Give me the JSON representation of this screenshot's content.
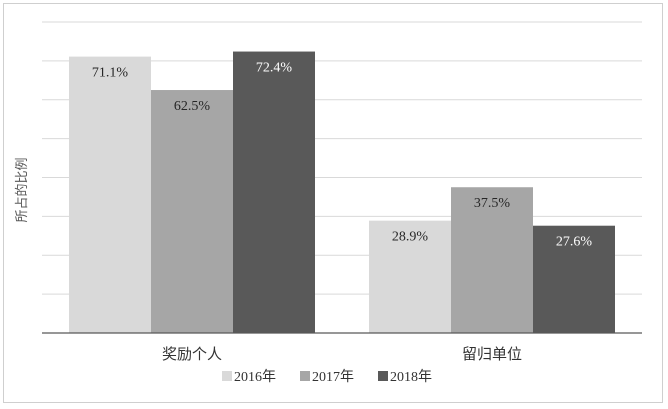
{
  "chart_data": {
    "type": "bar",
    "ylabel": "所占的比例",
    "categories": [
      "奖励个人",
      "留归单位"
    ],
    "ylim": [
      0,
      80
    ],
    "grid": true,
    "legend_position": "bottom",
    "value_format": "percent",
    "series": [
      {
        "name": "2016年",
        "values": [
          71.1,
          28.9
        ],
        "color": "#d9d9d9",
        "label_color": "#262626"
      },
      {
        "name": "2017年",
        "values": [
          62.5,
          37.5
        ],
        "color": "#a6a6a6",
        "label_color": "#262626"
      },
      {
        "name": "2018年",
        "values": [
          72.4,
          27.6
        ],
        "color": "#595959",
        "label_color": "#ffffff"
      }
    ]
  }
}
